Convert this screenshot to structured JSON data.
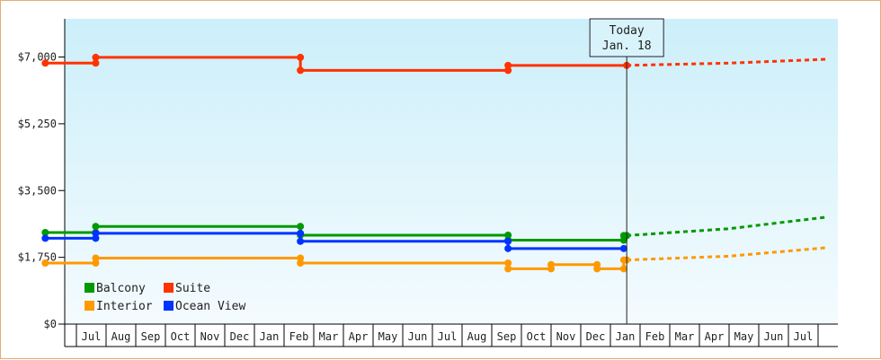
{
  "chart_data": {
    "type": "line",
    "title": "",
    "xlabel": "",
    "ylabel": "",
    "y_range": [
      0,
      8000
    ],
    "y_ticks": [
      {
        "value": 0,
        "label": "$0"
      },
      {
        "value": 1750,
        "label": "$1,750"
      },
      {
        "value": 3500,
        "label": "$3,500"
      },
      {
        "value": 5250,
        "label": "$5,250"
      },
      {
        "value": 7000,
        "label": "$7,000"
      }
    ],
    "x_months": [
      "Jul",
      "Aug",
      "Sep",
      "Oct",
      "Nov",
      "Dec",
      "Jan",
      "Feb",
      "Mar",
      "Apr",
      "May",
      "Jun",
      "Jul",
      "Aug",
      "Sep",
      "Oct",
      "Nov",
      "Dec",
      "Jan",
      "Feb",
      "Mar",
      "Apr",
      "May",
      "Jun",
      "Jul"
    ],
    "x_range": [
      -1.05,
      25.25
    ],
    "today": {
      "x": 18.55,
      "label_line1": "Today",
      "label_line2": "Jan. 18"
    },
    "legend": {
      "placement": "bottom-left"
    },
    "grid": false,
    "series": [
      {
        "name": "Suite",
        "color": "#ff3300",
        "points": [
          [
            -1.05,
            6840
          ],
          [
            0.65,
            6840
          ],
          [
            0.65,
            6990
          ],
          [
            7.55,
            6990
          ],
          [
            7.55,
            6650
          ],
          [
            14.55,
            6650
          ],
          [
            14.55,
            6780
          ],
          [
            18.55,
            6780
          ]
        ],
        "markers": [
          [
            -1.05,
            6840
          ],
          [
            0.65,
            6840
          ],
          [
            0.65,
            6990
          ],
          [
            7.55,
            6990
          ],
          [
            7.55,
            6650
          ],
          [
            14.55,
            6650
          ],
          [
            14.55,
            6780
          ],
          [
            18.55,
            6780
          ]
        ],
        "forecast": [
          [
            18.55,
            6780
          ],
          [
            22.0,
            6840
          ],
          [
            25.25,
            6940
          ]
        ]
      },
      {
        "name": "Balcony",
        "color": "#009900",
        "points": [
          [
            -1.05,
            2400
          ],
          [
            0.65,
            2400
          ],
          [
            0.65,
            2560
          ],
          [
            7.55,
            2560
          ],
          [
            7.55,
            2330
          ],
          [
            14.55,
            2330
          ],
          [
            14.55,
            2200
          ],
          [
            18.45,
            2200
          ],
          [
            18.45,
            2320
          ],
          [
            18.55,
            2320
          ]
        ],
        "markers": [
          [
            -1.05,
            2400
          ],
          [
            0.65,
            2400
          ],
          [
            0.65,
            2560
          ],
          [
            7.55,
            2560
          ],
          [
            7.55,
            2330
          ],
          [
            14.55,
            2330
          ],
          [
            14.55,
            2200
          ],
          [
            18.45,
            2200
          ],
          [
            18.45,
            2320
          ],
          [
            18.55,
            2320
          ]
        ],
        "forecast": [
          [
            18.55,
            2320
          ],
          [
            22.0,
            2500
          ],
          [
            25.25,
            2800
          ]
        ]
      },
      {
        "name": "Ocean View",
        "color": "#0033ff",
        "points": [
          [
            -1.05,
            2250
          ],
          [
            0.65,
            2250
          ],
          [
            0.65,
            2380
          ],
          [
            7.55,
            2380
          ],
          [
            7.55,
            2170
          ],
          [
            14.55,
            2170
          ],
          [
            14.55,
            1980
          ],
          [
            18.45,
            1980
          ]
        ],
        "markers": [
          [
            -1.05,
            2250
          ],
          [
            0.65,
            2250
          ],
          [
            0.65,
            2380
          ],
          [
            7.55,
            2380
          ],
          [
            7.55,
            2170
          ],
          [
            14.55,
            2170
          ],
          [
            14.55,
            1980
          ],
          [
            18.45,
            1980
          ]
        ],
        "forecast": []
      },
      {
        "name": "Interior",
        "color": "#ff9900",
        "points": [
          [
            -1.05,
            1600
          ],
          [
            0.65,
            1600
          ],
          [
            0.65,
            1730
          ],
          [
            7.55,
            1730
          ],
          [
            7.55,
            1600
          ],
          [
            14.55,
            1600
          ],
          [
            14.55,
            1450
          ],
          [
            16.0,
            1450
          ],
          [
            16.0,
            1560
          ],
          [
            17.55,
            1560
          ],
          [
            17.55,
            1450
          ],
          [
            18.45,
            1450
          ],
          [
            18.45,
            1680
          ],
          [
            18.55,
            1680
          ]
        ],
        "markers": [
          [
            -1.05,
            1600
          ],
          [
            0.65,
            1600
          ],
          [
            0.65,
            1730
          ],
          [
            7.55,
            1730
          ],
          [
            7.55,
            1600
          ],
          [
            14.55,
            1600
          ],
          [
            14.55,
            1450
          ],
          [
            16.0,
            1450
          ],
          [
            16.0,
            1560
          ],
          [
            17.55,
            1560
          ],
          [
            17.55,
            1450
          ],
          [
            18.45,
            1450
          ],
          [
            18.45,
            1680
          ],
          [
            18.55,
            1680
          ]
        ],
        "forecast": [
          [
            18.55,
            1680
          ],
          [
            22.0,
            1780
          ],
          [
            25.25,
            2000
          ]
        ]
      }
    ],
    "legend_entries": [
      {
        "name": "Balcony",
        "color": "#009900"
      },
      {
        "name": "Suite",
        "color": "#ff3300"
      },
      {
        "name": "Interior",
        "color": "#ff9900"
      },
      {
        "name": "Ocean View",
        "color": "#0033ff"
      }
    ]
  }
}
